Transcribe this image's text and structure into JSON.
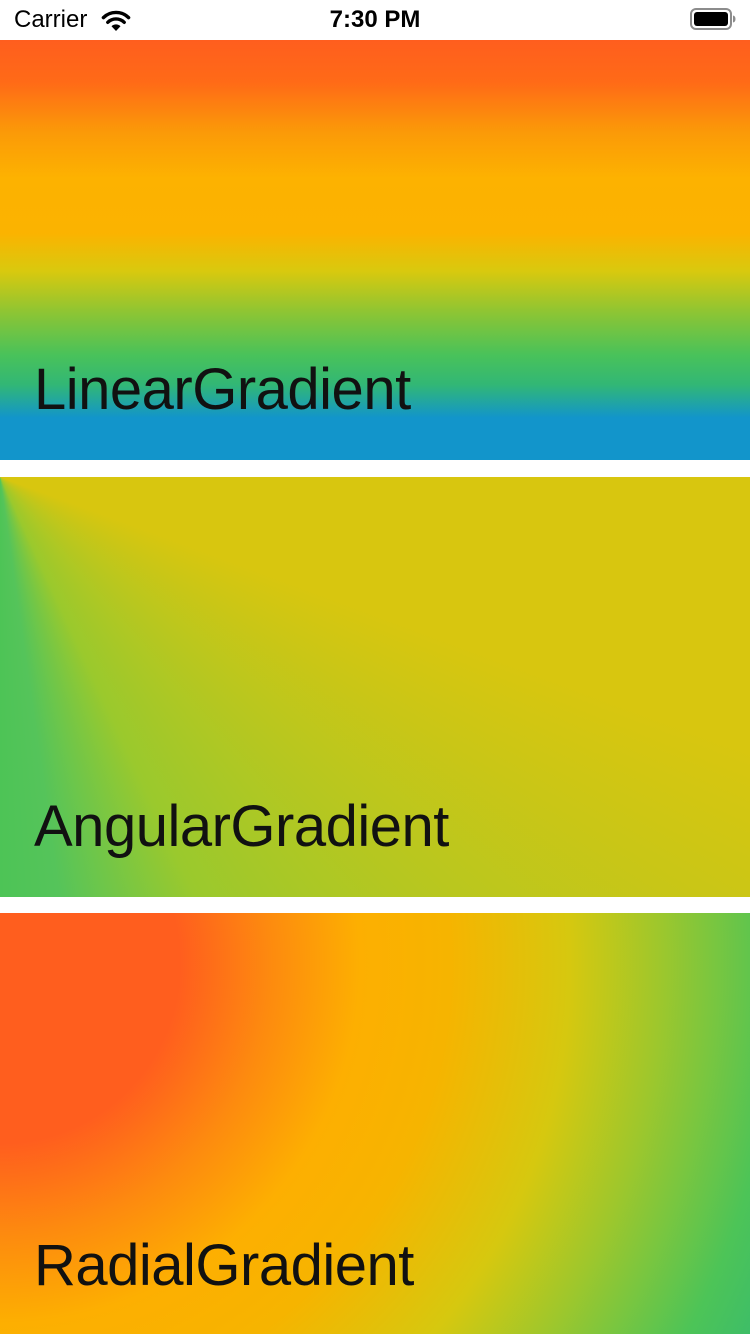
{
  "status_bar": {
    "carrier": "Carrier",
    "time": "7:30 PM",
    "wifi_icon": "wifi-icon",
    "battery_icon": "battery-icon"
  },
  "cards": [
    {
      "label": "LinearGradient",
      "gradient_type": "linear",
      "colors": [
        "#ff5e1e",
        "#fdb200",
        "#49c25a",
        "#1295cb"
      ]
    },
    {
      "label": "AngularGradient",
      "gradient_type": "angular",
      "colors": [
        "#d8c60f",
        "#9ac92d",
        "#4dc456"
      ]
    },
    {
      "label": "RadialGradient",
      "gradient_type": "radial",
      "colors": [
        "#ff5e1e",
        "#fdaf01",
        "#d6c80f",
        "#4dc457",
        "#1b9ac0"
      ]
    }
  ]
}
